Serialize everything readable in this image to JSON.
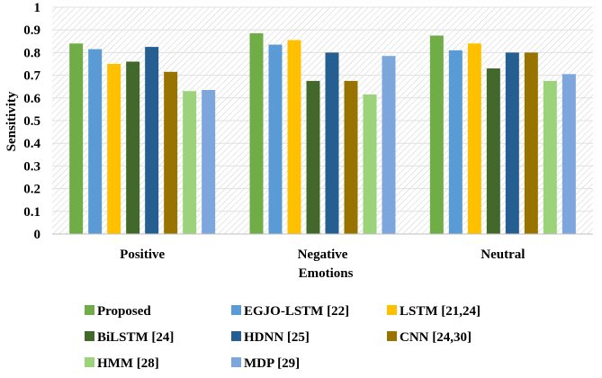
{
  "chart_data": {
    "type": "bar",
    "title": "",
    "xlabel": "Emotions",
    "ylabel": "Sensitivity",
    "ylim": [
      0,
      1
    ],
    "yticks": [
      "0",
      "0.1",
      "0.2",
      "0.3",
      "0.4",
      "0.5",
      "0.6",
      "0.7",
      "0.8",
      "0.9",
      "1"
    ],
    "categories": [
      "Positive",
      "Negative",
      "Neutral"
    ],
    "legend_position": "bottom",
    "series": [
      {
        "name": "Proposed",
        "color": "#70ad47",
        "values": [
          0.84,
          0.885,
          0.875
        ]
      },
      {
        "name": "EGJO-LSTM [22]",
        "color": "#5b9bd5",
        "values": [
          0.815,
          0.835,
          0.81
        ]
      },
      {
        "name": "LSTM [21,24]",
        "color": "#ffc000",
        "values": [
          0.75,
          0.855,
          0.84
        ]
      },
      {
        "name": "BiLSTM [24]",
        "color": "#43682b",
        "values": [
          0.76,
          0.675,
          0.73
        ]
      },
      {
        "name": "HDNN [25]",
        "color": "#255e91",
        "values": [
          0.825,
          0.8,
          0.8
        ]
      },
      {
        "name": "CNN [24,30]",
        "color": "#997300",
        "values": [
          0.715,
          0.675,
          0.8
        ]
      },
      {
        "name": "HMM [28]",
        "color": "#9bd27a",
        "values": [
          0.63,
          0.615,
          0.675
        ]
      },
      {
        "name": "MDP [29]",
        "color": "#7ca6dc",
        "values": [
          0.635,
          0.785,
          0.705
        ]
      }
    ]
  }
}
